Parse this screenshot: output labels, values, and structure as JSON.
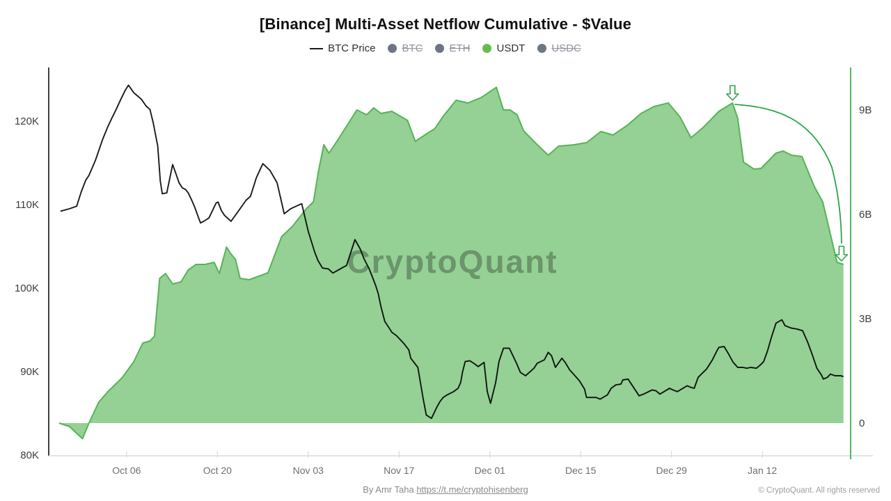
{
  "title": "[Binance] Multi-Asset Netflow Cumulative - $Value",
  "watermark": "CryptoQuant",
  "footer": {
    "credit_prefix": "By Amr Taha",
    "credit_link": "https://t.me/cryptohisenberg",
    "copyright": "© CryptoQuant. All rights reserved"
  },
  "legend": {
    "items": [
      {
        "label": "BTC Price",
        "swatch": "line",
        "color": "#1a1a1a",
        "struck": false
      },
      {
        "label": "BTC",
        "swatch": "dot",
        "color": "#6e7681",
        "struck": true
      },
      {
        "label": "ETH",
        "swatch": "dot",
        "color": "#6e7681",
        "struck": true
      },
      {
        "label": "USDT",
        "swatch": "dot",
        "color": "#64bd4a",
        "struck": false
      },
      {
        "label": "USDC",
        "swatch": "dot",
        "color": "#6e7681",
        "struck": true
      }
    ]
  },
  "chart_data": {
    "type": "line+area",
    "title": "[Binance] Multi-Asset Netflow Cumulative - $Value",
    "x_axis": {
      "tick_labels": [
        "Oct 06",
        "Oct 20",
        "Nov 03",
        "Nov 17",
        "Dec 01",
        "Dec 15",
        "Dec 29",
        "Jan 12"
      ],
      "tick_days": [
        12,
        26,
        40,
        54,
        68,
        82,
        96,
        110
      ],
      "domain_days": [
        0,
        123.6
      ]
    },
    "y_left_axis": {
      "tick_labels": [
        "120K",
        "110K",
        "100K",
        "90K",
        "80K"
      ],
      "tick_values": [
        120,
        110,
        100,
        90,
        80
      ],
      "units": "thousand USD (BTC price)",
      "domain": [
        80,
        126.3
      ],
      "grid": false
    },
    "y_right_axis": {
      "tick_labels": [
        "9B",
        "6B",
        "3B",
        "0"
      ],
      "tick_values": [
        9,
        6,
        3,
        0
      ],
      "units": "billion USD (netflow cumulative)",
      "domain": [
        -0.95,
        10.2
      ],
      "axis_color": "#57b757"
    },
    "series": [
      {
        "name": "BTC Price",
        "axis": "left",
        "type": "line",
        "color": "#1a1a1a",
        "points": [
          [
            1.8,
            109.2
          ],
          [
            3.2,
            109.5
          ],
          [
            4.3,
            109.8
          ],
          [
            5.0,
            111.5
          ],
          [
            5.7,
            112.9
          ],
          [
            6.2,
            113.5
          ],
          [
            7.2,
            115.3
          ],
          [
            8.3,
            117.8
          ],
          [
            9.1,
            119.3
          ],
          [
            9.7,
            120.3
          ],
          [
            10.4,
            121.4
          ],
          [
            11.1,
            122.6
          ],
          [
            11.8,
            123.7
          ],
          [
            12.3,
            124.3
          ],
          [
            13.1,
            123.4
          ],
          [
            13.7,
            123.0
          ],
          [
            14.3,
            122.6
          ],
          [
            15.0,
            121.8
          ],
          [
            15.6,
            121.4
          ],
          [
            16.1,
            119.8
          ],
          [
            16.8,
            117.0
          ],
          [
            17.2,
            112.8
          ],
          [
            17.5,
            111.3
          ],
          [
            18.2,
            111.4
          ],
          [
            19.1,
            114.8
          ],
          [
            19.6,
            113.7
          ],
          [
            20.1,
            112.6
          ],
          [
            20.6,
            112.0
          ],
          [
            21.1,
            111.8
          ],
          [
            21.5,
            111.4
          ],
          [
            22.0,
            110.6
          ],
          [
            22.5,
            109.7
          ],
          [
            23.1,
            108.4
          ],
          [
            23.4,
            107.8
          ],
          [
            23.9,
            108.0
          ],
          [
            24.7,
            108.4
          ],
          [
            25.8,
            110.2
          ],
          [
            26.1,
            110.3
          ],
          [
            26.6,
            109.3
          ],
          [
            27.1,
            108.7
          ],
          [
            28.1,
            108.0
          ],
          [
            29.3,
            109.3
          ],
          [
            30.4,
            110.5
          ],
          [
            31.1,
            111.0
          ],
          [
            32.0,
            113.2
          ],
          [
            33.0,
            114.9
          ],
          [
            34.1,
            114.1
          ],
          [
            35.2,
            112.6
          ],
          [
            36.3,
            108.9
          ],
          [
            37.3,
            109.5
          ],
          [
            38.4,
            109.9
          ],
          [
            39.0,
            110.1
          ],
          [
            40.0,
            106.8
          ],
          [
            41.0,
            104.3
          ],
          [
            41.5,
            103.3
          ],
          [
            42.2,
            102.4
          ],
          [
            43.1,
            102.3
          ],
          [
            43.8,
            101.8
          ],
          [
            45.4,
            102.5
          ],
          [
            45.9,
            102.7
          ],
          [
            47.2,
            105.8
          ],
          [
            48.0,
            104.7
          ],
          [
            48.6,
            103.5
          ],
          [
            49.4,
            102.3
          ],
          [
            49.9,
            101.3
          ],
          [
            50.4,
            100.3
          ],
          [
            50.8,
            99.3
          ],
          [
            51.2,
            97.8
          ],
          [
            51.8,
            96.0
          ],
          [
            52.4,
            95.3
          ],
          [
            52.9,
            94.7
          ],
          [
            53.6,
            94.3
          ],
          [
            54.7,
            93.4
          ],
          [
            55.5,
            92.6
          ],
          [
            55.8,
            91.6
          ],
          [
            56.9,
            90.5
          ],
          [
            57.7,
            86.8
          ],
          [
            58.2,
            84.8
          ],
          [
            59.0,
            84.4
          ],
          [
            59.8,
            85.7
          ],
          [
            60.3,
            86.4
          ],
          [
            60.8,
            86.9
          ],
          [
            61.4,
            87.2
          ],
          [
            62.4,
            87.6
          ],
          [
            63.1,
            88.0
          ],
          [
            63.5,
            88.7
          ],
          [
            63.8,
            90.0
          ],
          [
            64.2,
            91.2
          ],
          [
            64.9,
            91.3
          ],
          [
            65.5,
            91.0
          ],
          [
            66.2,
            90.6
          ],
          [
            67.1,
            91.1
          ],
          [
            67.6,
            87.6
          ],
          [
            68.1,
            86.2
          ],
          [
            68.9,
            88.7
          ],
          [
            69.4,
            91.2
          ],
          [
            70.1,
            92.8
          ],
          [
            71.0,
            92.8
          ],
          [
            72.1,
            91.0
          ],
          [
            72.7,
            89.9
          ],
          [
            73.5,
            89.5
          ],
          [
            74.8,
            90.4
          ],
          [
            75.3,
            91.0
          ],
          [
            76.4,
            91.4
          ],
          [
            77.0,
            92.3
          ],
          [
            77.5,
            91.9
          ],
          [
            78.1,
            90.5
          ],
          [
            79.1,
            91.6
          ],
          [
            79.6,
            91.1
          ],
          [
            80.3,
            90.2
          ],
          [
            81.0,
            89.6
          ],
          [
            81.8,
            88.9
          ],
          [
            82.6,
            87.9
          ],
          [
            82.9,
            86.9
          ],
          [
            84.4,
            86.9
          ],
          [
            85.0,
            86.7
          ],
          [
            86.1,
            87.2
          ],
          [
            86.7,
            88.0
          ],
          [
            87.4,
            88.4
          ],
          [
            88.2,
            88.5
          ],
          [
            88.5,
            89.0
          ],
          [
            89.3,
            89.1
          ],
          [
            91.0,
            87.1
          ],
          [
            91.7,
            87.3
          ],
          [
            93.0,
            87.8
          ],
          [
            93.6,
            87.7
          ],
          [
            94.2,
            87.3
          ],
          [
            95.7,
            88.0
          ],
          [
            96.2,
            87.8
          ],
          [
            96.9,
            87.6
          ],
          [
            98.4,
            88.3
          ],
          [
            99.0,
            88.1
          ],
          [
            99.5,
            88.0
          ],
          [
            100.1,
            89.3
          ],
          [
            100.6,
            89.7
          ],
          [
            101.4,
            90.3
          ],
          [
            102.3,
            91.4
          ],
          [
            103.0,
            92.5
          ],
          [
            103.3,
            92.9
          ],
          [
            104.1,
            93.0
          ],
          [
            104.8,
            92.1
          ],
          [
            105.5,
            91.1
          ],
          [
            106.2,
            90.5
          ],
          [
            107.0,
            90.5
          ],
          [
            107.6,
            90.4
          ],
          [
            108.2,
            90.5
          ],
          [
            109.1,
            90.4
          ],
          [
            109.7,
            90.8
          ],
          [
            110.2,
            91.2
          ],
          [
            110.8,
            92.5
          ],
          [
            111.4,
            94.1
          ],
          [
            112.1,
            95.8
          ],
          [
            113.0,
            96.2
          ],
          [
            113.5,
            95.5
          ],
          [
            114.5,
            95.2
          ],
          [
            115.3,
            95.1
          ],
          [
            116.2,
            94.9
          ],
          [
            117.0,
            93.5
          ],
          [
            117.7,
            92.0
          ],
          [
            118.4,
            90.4
          ],
          [
            119.1,
            89.6
          ],
          [
            119.4,
            89.1
          ],
          [
            120.0,
            89.3
          ],
          [
            120.5,
            89.7
          ],
          [
            121.2,
            89.5
          ],
          [
            122.1,
            89.5
          ],
          [
            122.5,
            89.4
          ]
        ]
      },
      {
        "name": "USDT",
        "axis": "right",
        "type": "area",
        "fill": "#8fce8f",
        "stroke": "#55b455",
        "points": [
          [
            1.6,
            0.0
          ],
          [
            3.2,
            -0.1
          ],
          [
            5.2,
            -0.45
          ],
          [
            6.2,
            0.0
          ],
          [
            7.7,
            0.6
          ],
          [
            9.1,
            0.9
          ],
          [
            11.3,
            1.3
          ],
          [
            13.1,
            1.76
          ],
          [
            14.5,
            2.3
          ],
          [
            15.6,
            2.36
          ],
          [
            16.3,
            2.5
          ],
          [
            17.1,
            4.16
          ],
          [
            18.0,
            4.3
          ],
          [
            19.1,
            4.0
          ],
          [
            20.4,
            4.06
          ],
          [
            21.5,
            4.4
          ],
          [
            22.7,
            4.56
          ],
          [
            24.1,
            4.56
          ],
          [
            25.5,
            4.62
          ],
          [
            26.3,
            4.3
          ],
          [
            27.4,
            5.06
          ],
          [
            28.1,
            4.86
          ],
          [
            28.8,
            4.7
          ],
          [
            29.5,
            4.16
          ],
          [
            30.9,
            4.12
          ],
          [
            33.8,
            4.32
          ],
          [
            35.9,
            5.36
          ],
          [
            37.6,
            5.66
          ],
          [
            39.7,
            6.16
          ],
          [
            40.8,
            6.36
          ],
          [
            41.6,
            7.26
          ],
          [
            42.4,
            8.0
          ],
          [
            43.2,
            7.76
          ],
          [
            44.5,
            8.12
          ],
          [
            47.5,
            9.0
          ],
          [
            49.0,
            8.86
          ],
          [
            50.1,
            9.06
          ],
          [
            51.2,
            8.9
          ],
          [
            52.9,
            8.96
          ],
          [
            55.3,
            8.7
          ],
          [
            56.5,
            8.1
          ],
          [
            58.3,
            8.32
          ],
          [
            59.5,
            8.46
          ],
          [
            60.8,
            8.82
          ],
          [
            62.8,
            9.28
          ],
          [
            64.6,
            9.2
          ],
          [
            66.7,
            9.36
          ],
          [
            69.0,
            9.65
          ],
          [
            70.1,
            9.0
          ],
          [
            71.1,
            9.0
          ],
          [
            72.2,
            8.86
          ],
          [
            73.2,
            8.4
          ],
          [
            75.3,
            8.0
          ],
          [
            77.0,
            7.7
          ],
          [
            78.6,
            7.96
          ],
          [
            81.0,
            8.0
          ],
          [
            82.9,
            8.06
          ],
          [
            85.1,
            8.38
          ],
          [
            87.0,
            8.28
          ],
          [
            89.2,
            8.56
          ],
          [
            91.3,
            8.9
          ],
          [
            93.3,
            9.1
          ],
          [
            95.5,
            9.2
          ],
          [
            97.3,
            8.8
          ],
          [
            99.0,
            8.2
          ],
          [
            100.9,
            8.5
          ],
          [
            103.3,
            8.96
          ],
          [
            105.4,
            9.2
          ],
          [
            106.2,
            8.76
          ],
          [
            107.1,
            7.5
          ],
          [
            108.7,
            7.3
          ],
          [
            109.8,
            7.32
          ],
          [
            112.1,
            7.76
          ],
          [
            113.2,
            7.82
          ],
          [
            114.5,
            7.7
          ],
          [
            116.1,
            7.66
          ],
          [
            118.0,
            6.8
          ],
          [
            119.3,
            6.36
          ],
          [
            120.4,
            5.5
          ],
          [
            121.5,
            4.62
          ],
          [
            122.5,
            4.56
          ]
        ]
      }
    ],
    "annotation": {
      "type": "arrow-curve",
      "color": "#2ca44a",
      "from_day": 105.4,
      "from_value_B": 9.2,
      "to_day": 122.2,
      "to_value_B": 4.62
    }
  }
}
